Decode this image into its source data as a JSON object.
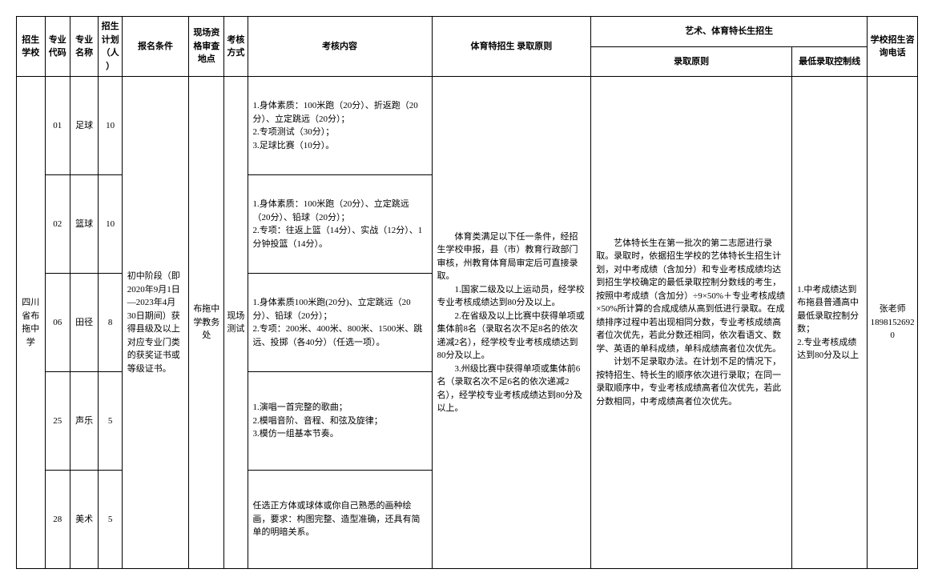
{
  "headers": {
    "school": "招生学校",
    "code": "专业代码",
    "name": "专业名称",
    "plan": "招生计划（人）",
    "cond": "报名条件",
    "loc": "现场资格审查地点",
    "mode": "考核方式",
    "content": "考核内容",
    "sport": "体育特招生\n录取原则",
    "art_group": "艺术、体育特长生招生",
    "art_principle": "录取原则",
    "art_min": "最低录取控制线",
    "tel": "学校招生咨询电话"
  },
  "school": "四川省布拖中学",
  "condition": "初中阶段（即2020年9月1日—2023年4月30日期间）获得县级及以上对应专业门类的获奖证书或等级证书。",
  "location": "布拖中学教务处",
  "mode": "现场测试",
  "sport_principle": "　　体育类满足以下任一条件，经招生学校申报，县（市）教育行政部门审核，州教育体育局审定后可直接录取。\n　　1.国家二级及以上运动员，经学校专业考核成绩达到80分及以上。\n　　2.在省级及以上比赛中获得单项或集体前8名（录取名次不足8名的依次递减2名），经学校专业考核成绩达到80分及以上。\n　　3.州级比赛中获得单项或集体前6名（录取名次不足6名的依次递减2名），经学校专业考核成绩达到80分及以上。",
  "art_principle": "　　艺体特长生在第一批次的第二志愿进行录取。录取时，依据招生学校的艺体特长生招生计划，对中考成绩（含加分）和专业考核成绩均达到招生学校确定的最低录取控制分数线的考生，按照中考成绩（含加分）÷9×50%＋专业考核成绩×50%所计算的合成成绩从高到低进行录取。在成绩排序过程中若出现相同分数，专业考核成绩高者位次优先，若此分数还相同，依次看语文、数学、英语的单科成绩，单科成绩高者位次优先。\n　　计划不足录取办法。在计划不足的情况下，按特招生、特长生的顺序依次进行录取；在同一录取顺序中，专业考核成绩高者位次优先，若此分数相同，中考成绩高者位次优先。",
  "min_line": "1.中考成绩达到布拖县普通高中最低录取控制分数；\n2.专业考核成绩达到80分及以上",
  "tel": "张老师18981526920",
  "rows": [
    {
      "code": "01",
      "name": "足球",
      "plan": "10",
      "content": "1.身体素质：100米跑（20分）、折返跑（20分）、立定跳远（20分）；\n2.专项测试（30分）；\n3.足球比赛（10分）。"
    },
    {
      "code": "02",
      "name": "篮球",
      "plan": "10",
      "content": "1.身体素质：100米跑（20分）、立定跳远（20分）、铅球（20分）；\n2.专项：往返上篮（14分）、实战（12分）、1分钟投篮（14分）。"
    },
    {
      "code": "06",
      "name": "田径",
      "plan": "8",
      "content": "1.身体素质100米跑(20分)、立定跳远（20分）、铅球（20分）；\n2.专项：200米、400米、800米、1500米、跳远、投掷（各40分）（任选一项）。"
    },
    {
      "code": "25",
      "name": "声乐",
      "plan": "5",
      "content": "1.演唱一首完整的歌曲；\n2.模唱音阶、音程、和弦及旋律；\n3.模仿一组基本节奏。"
    },
    {
      "code": "28",
      "name": "美术",
      "plan": "5",
      "content": "任选正方体或球体或你自己熟悉的画种绘画，要求：构图完整、造型准确，还具有简单的明暗关系。"
    }
  ]
}
